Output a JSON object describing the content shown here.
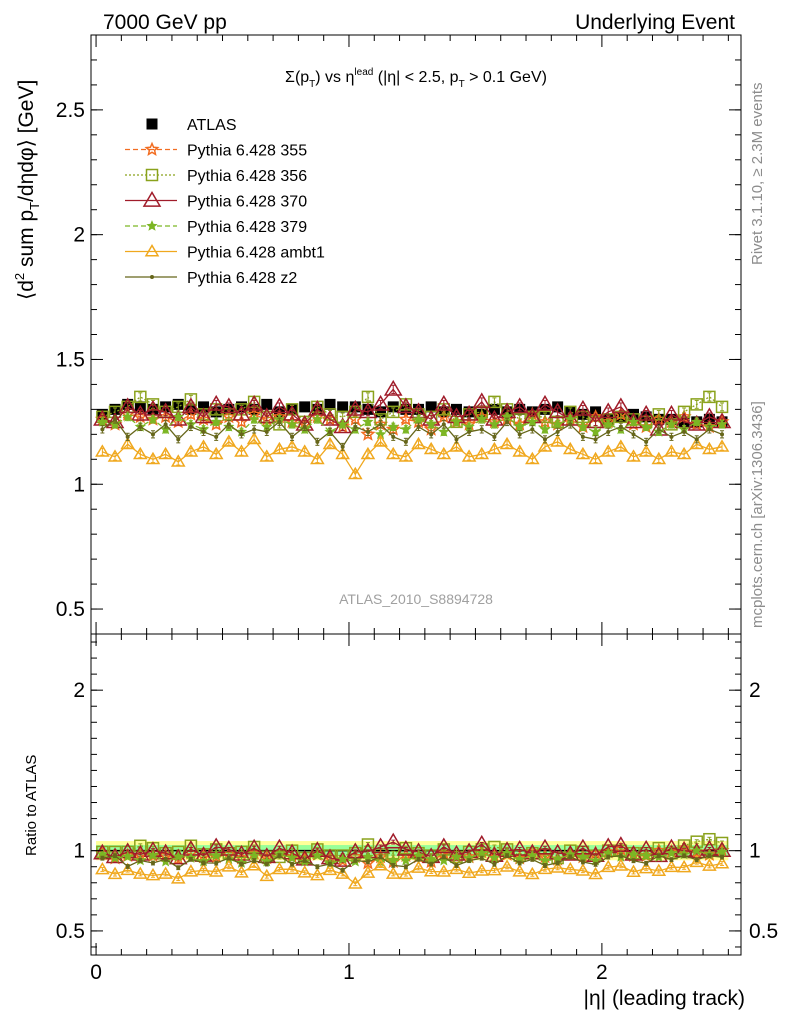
{
  "header": {
    "left": "7000 GeV pp",
    "right": "Underlying Event"
  },
  "side_labels": {
    "rivet": "Rivet 3.1.10, ≥ 2.3M events",
    "mcplots": "mcplots.cern.ch [arXiv:1306.3436]"
  },
  "plot_title": {
    "sigma": "Σ(p",
    "sub_t": "T",
    "vs": ") vs η",
    "sup": "lead",
    "cond1": " (|η| < 2.5, p",
    "sub_t2": "T",
    "cond2": " > 0.1 GeV)"
  },
  "watermark": "ATLAS_2010_S8894728",
  "axes": {
    "ylabel_main": {
      "a": "⟨d",
      "sup": "2",
      "b": " sum p",
      "sub": "T",
      "c": "/dηdφ⟩ [GeV]"
    },
    "ylabel_ratio": "Ratio to ATLAS",
    "xlabel": "|η| (leading track)"
  },
  "legend": [
    {
      "label": "ATLAS"
    },
    {
      "label": "Pythia 6.428 355"
    },
    {
      "label": "Pythia 6.428 356"
    },
    {
      "label": "Pythia 6.428 370"
    },
    {
      "label": "Pythia 6.428 379"
    },
    {
      "label": "Pythia 6.428 ambt1"
    },
    {
      "label": "Pythia 6.428 z2"
    }
  ],
  "colors": {
    "atlas": "#000000",
    "p355": "#f26d21",
    "p356": "#8aa21c",
    "p370": "#a01c2a",
    "p379": "#7cb624",
    "ambt1": "#f0a81e",
    "z2": "#66661a",
    "band_yellow": "#ffff99",
    "band_green": "#99ff99"
  },
  "chart_data": {
    "type": "scatter",
    "main_panel": {
      "ylim": [
        0.4,
        2.8
      ],
      "y_ticks": [
        "0.5",
        "1",
        "1.5",
        "2",
        "2.5"
      ],
      "y_tick_values": [
        0.5,
        1,
        1.5,
        2,
        2.5
      ]
    },
    "ratio_panel": {
      "ylim": [
        0.35,
        2.35
      ],
      "y_ticks": [
        "0.5",
        "1",
        "2"
      ],
      "y_tick_values": [
        0.5,
        1,
        2
      ],
      "band_yellow_halfwidth": 0.06,
      "band_green_halfwidth": 0.035
    },
    "xlim": [
      -0.02,
      2.55
    ],
    "x_ticks": [
      "0",
      "1",
      "2"
    ],
    "x_tick_values": [
      0,
      1,
      2
    ],
    "x": [
      0.025,
      0.075,
      0.125,
      0.175,
      0.225,
      0.275,
      0.325,
      0.375,
      0.425,
      0.475,
      0.525,
      0.575,
      0.625,
      0.675,
      0.725,
      0.775,
      0.825,
      0.875,
      0.925,
      0.975,
      1.025,
      1.075,
      1.125,
      1.175,
      1.225,
      1.275,
      1.325,
      1.375,
      1.425,
      1.475,
      1.525,
      1.575,
      1.625,
      1.675,
      1.725,
      1.775,
      1.825,
      1.875,
      1.925,
      1.975,
      2.025,
      2.075,
      2.125,
      2.175,
      2.225,
      2.275,
      2.325,
      2.375,
      2.425,
      2.475
    ],
    "series": [
      {
        "name": "ATLAS",
        "key": "atlas",
        "values": [
          1.28,
          1.3,
          1.32,
          1.31,
          1.3,
          1.31,
          1.32,
          1.3,
          1.31,
          1.29,
          1.3,
          1.31,
          1.3,
          1.32,
          1.29,
          1.3,
          1.31,
          1.3,
          1.32,
          1.31,
          1.31,
          1.3,
          1.29,
          1.31,
          1.3,
          1.3,
          1.31,
          1.29,
          1.3,
          1.29,
          1.28,
          1.3,
          1.29,
          1.3,
          1.29,
          1.3,
          1.31,
          1.29,
          1.28,
          1.29,
          1.26,
          1.27,
          1.28,
          1.27,
          1.26,
          1.26,
          1.25,
          1.25,
          1.26,
          1.25
        ]
      },
      {
        "name": "Pythia 6.428 355",
        "key": "p355",
        "values": [
          1.26,
          1.24,
          1.28,
          1.27,
          1.26,
          1.27,
          1.25,
          1.28,
          1.26,
          1.24,
          1.27,
          1.25,
          1.28,
          1.26,
          1.27,
          1.25,
          1.24,
          1.27,
          1.26,
          1.23,
          1.26,
          1.2,
          1.24,
          1.22,
          1.26,
          1.25,
          1.22,
          1.27,
          1.25,
          1.24,
          1.27,
          1.25,
          1.26,
          1.24,
          1.28,
          1.25,
          1.24,
          1.26,
          1.23,
          1.27,
          1.25,
          1.28,
          1.24,
          1.23,
          1.26,
          1.25,
          1.27,
          1.24,
          1.23,
          1.25
        ]
      },
      {
        "name": "Pythia 6.428 356",
        "key": "p356",
        "values": [
          1.27,
          1.29,
          1.31,
          1.35,
          1.32,
          1.29,
          1.31,
          1.34,
          1.28,
          1.3,
          1.28,
          1.3,
          1.33,
          1.27,
          1.24,
          1.3,
          1.25,
          1.31,
          1.28,
          1.27,
          1.29,
          1.35,
          1.26,
          1.29,
          1.32,
          1.28,
          1.27,
          1.3,
          1.25,
          1.28,
          1.29,
          1.33,
          1.3,
          1.26,
          1.27,
          1.27,
          1.25,
          1.29,
          1.27,
          1.25,
          1.26,
          1.27,
          1.26,
          1.25,
          1.28,
          1.24,
          1.29,
          1.32,
          1.35,
          1.31
        ]
      },
      {
        "name": "Pythia 6.428 370",
        "key": "p370",
        "values": [
          1.26,
          1.25,
          1.31,
          1.28,
          1.3,
          1.29,
          1.26,
          1.31,
          1.27,
          1.32,
          1.31,
          1.28,
          1.32,
          1.27,
          1.31,
          1.28,
          1.24,
          1.3,
          1.26,
          1.23,
          1.3,
          1.29,
          1.32,
          1.38,
          1.31,
          1.29,
          1.26,
          1.32,
          1.27,
          1.28,
          1.33,
          1.26,
          1.29,
          1.31,
          1.27,
          1.32,
          1.29,
          1.26,
          1.3,
          1.25,
          1.29,
          1.31,
          1.25,
          1.28,
          1.22,
          1.28,
          1.25,
          1.24,
          1.27,
          1.25
        ]
      },
      {
        "name": "Pythia 6.428 379",
        "key": "p379",
        "values": [
          1.25,
          1.24,
          1.27,
          1.23,
          1.26,
          1.22,
          1.27,
          1.24,
          1.22,
          1.25,
          1.23,
          1.21,
          1.26,
          1.23,
          1.26,
          1.24,
          1.22,
          1.26,
          1.21,
          1.24,
          1.22,
          1.25,
          1.2,
          1.23,
          1.22,
          1.26,
          1.24,
          1.21,
          1.25,
          1.23,
          1.26,
          1.24,
          1.27,
          1.23,
          1.25,
          1.22,
          1.24,
          1.26,
          1.23,
          1.21,
          1.24,
          1.22,
          1.25,
          1.23,
          1.21,
          1.24,
          1.22,
          1.25,
          1.23,
          1.24
        ]
      },
      {
        "name": "Pythia 6.428 ambt1",
        "key": "ambt1",
        "values": [
          1.13,
          1.11,
          1.16,
          1.12,
          1.1,
          1.12,
          1.09,
          1.13,
          1.15,
          1.12,
          1.17,
          1.13,
          1.18,
          1.11,
          1.14,
          1.15,
          1.13,
          1.1,
          1.16,
          1.12,
          1.04,
          1.12,
          1.17,
          1.12,
          1.11,
          1.16,
          1.14,
          1.12,
          1.15,
          1.11,
          1.12,
          1.14,
          1.16,
          1.13,
          1.1,
          1.15,
          1.17,
          1.14,
          1.12,
          1.1,
          1.13,
          1.15,
          1.11,
          1.13,
          1.1,
          1.13,
          1.12,
          1.16,
          1.14,
          1.15
        ]
      },
      {
        "name": "Pythia 6.428 z2",
        "key": "z2",
        "values": [
          1.22,
          1.26,
          1.19,
          1.23,
          1.2,
          1.24,
          1.18,
          1.23,
          1.21,
          1.19,
          1.24,
          1.2,
          1.22,
          1.21,
          1.25,
          1.19,
          1.23,
          1.17,
          1.21,
          1.15,
          1.23,
          1.21,
          1.24,
          1.19,
          1.17,
          1.23,
          1.2,
          1.24,
          1.18,
          1.21,
          1.22,
          1.19,
          1.25,
          1.2,
          1.22,
          1.18,
          1.21,
          1.24,
          1.19,
          1.18,
          1.21,
          1.23,
          1.2,
          1.17,
          1.22,
          1.19,
          1.21,
          1.18,
          1.22,
          1.2
        ]
      }
    ]
  }
}
